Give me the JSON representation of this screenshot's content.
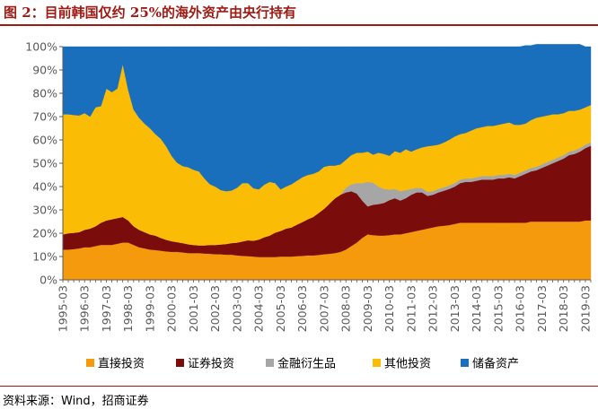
{
  "title": "图 2：目前韩国仅约 25%的海外资产由央行持有",
  "source": "资料来源：Wind，招商证券",
  "chart_data": {
    "type": "area",
    "stacked": true,
    "x": [
      "1995-03",
      "1995-06",
      "1995-09",
      "1995-12",
      "1996-03",
      "1996-06",
      "1996-09",
      "1996-12",
      "1997-03",
      "1997-06",
      "1997-09",
      "1997-12",
      "1998-03",
      "1998-06",
      "1998-09",
      "1998-12",
      "1999-03",
      "1999-06",
      "1999-09",
      "1999-12",
      "2000-03",
      "2000-06",
      "2000-09",
      "2000-12",
      "2001-03",
      "2001-06",
      "2001-09",
      "2001-12",
      "2002-03",
      "2002-06",
      "2002-09",
      "2002-12",
      "2003-03",
      "2003-06",
      "2003-09",
      "2003-12",
      "2004-03",
      "2004-06",
      "2004-09",
      "2004-12",
      "2005-03",
      "2005-06",
      "2005-09",
      "2005-12",
      "2006-03",
      "2006-06",
      "2006-09",
      "2006-12",
      "2007-03",
      "2007-06",
      "2007-09",
      "2007-12",
      "2008-03",
      "2008-06",
      "2008-09",
      "2008-12",
      "2009-03",
      "2009-06",
      "2009-09",
      "2009-12",
      "2010-03",
      "2010-06",
      "2010-09",
      "2010-12",
      "2011-03",
      "2011-06",
      "2011-09",
      "2011-12",
      "2012-03",
      "2012-06",
      "2012-09",
      "2012-12",
      "2013-03",
      "2013-06",
      "2013-09",
      "2013-12",
      "2014-03",
      "2014-06",
      "2014-09",
      "2014-12",
      "2015-03",
      "2015-06",
      "2015-09",
      "2015-12",
      "2016-03",
      "2016-06",
      "2016-09",
      "2016-12",
      "2017-03",
      "2017-06",
      "2017-09",
      "2017-12",
      "2018-03",
      "2018-06",
      "2018-09",
      "2018-12",
      "2019-03",
      "2019-06"
    ],
    "x_tick_labels": [
      "1995-03",
      "1996-03",
      "1997-03",
      "1998-03",
      "1999-03",
      "2000-03",
      "2001-03",
      "2002-03",
      "2003-03",
      "2004-03",
      "2005-03",
      "2006-03",
      "2007-03",
      "2008-03",
      "2009-03",
      "2010-03",
      "2011-03",
      "2012-03",
      "2013-03",
      "2014-03",
      "2015-03",
      "2016-03",
      "2017-03",
      "2018-03",
      "2019-03"
    ],
    "y_tick_labels": [
      "0%",
      "10%",
      "20%",
      "30%",
      "40%",
      "50%",
      "60%",
      "70%",
      "80%",
      "90%",
      "100%"
    ],
    "ylim": [
      0,
      100
    ],
    "unit": "%",
    "legend_position": "bottom",
    "grid": false,
    "series": [
      {
        "name": "直接投资",
        "color": "#f59a0d",
        "values": [
          13,
          13,
          13.2,
          13.5,
          14,
          14,
          14.5,
          15,
          15,
          15,
          15.5,
          16,
          16,
          15,
          14,
          13.5,
          13,
          12.8,
          12.5,
          12.2,
          12,
          12,
          11.8,
          11.5,
          11.5,
          11.5,
          11.3,
          11.2,
          11,
          11,
          10.8,
          10.8,
          10.5,
          10.3,
          10.2,
          10,
          9.8,
          9.8,
          9.8,
          9.8,
          10,
          10,
          10,
          10.2,
          10.3,
          10.5,
          10.5,
          10.7,
          11,
          11.2,
          11.5,
          12,
          13,
          14.5,
          16,
          18,
          19.5,
          19.2,
          19,
          19,
          19.2,
          19.5,
          19.5,
          20,
          20.5,
          21,
          21.5,
          22,
          22.5,
          23,
          23.2,
          23.5,
          24,
          24.5,
          24.5,
          24.5,
          24.5,
          24.5,
          24.5,
          24.5,
          24.5,
          24.5,
          24.5,
          24.5,
          24.5,
          24.5,
          25,
          25,
          25,
          25,
          25,
          25,
          25,
          25,
          25,
          25,
          25.5,
          25.5
        ]
      },
      {
        "name": "证券投资",
        "color": "#7b0c0c",
        "values": [
          6.5,
          7,
          7,
          7,
          7.5,
          8,
          8.5,
          9.5,
          10.5,
          11,
          11,
          11,
          9.5,
          8,
          7.5,
          7,
          6.5,
          6.2,
          5.5,
          5,
          4.6,
          4.2,
          4,
          3.8,
          3.5,
          3.3,
          3.5,
          3.8,
          4,
          4.2,
          4.6,
          5,
          5.5,
          6.2,
          6.8,
          6.8,
          7.5,
          8.5,
          9.2,
          10.5,
          11,
          12,
          12.5,
          13.5,
          14.5,
          15.5,
          16.5,
          18,
          19.5,
          21.5,
          23.5,
          24.5,
          24.5,
          23.5,
          21,
          16,
          12,
          13,
          13.5,
          14,
          15,
          15.5,
          14.5,
          15,
          16,
          16.5,
          16,
          14,
          14,
          14.5,
          15,
          15.5,
          16,
          17,
          17.5,
          17.5,
          18,
          18.5,
          18.5,
          18.5,
          19,
          19,
          19.5,
          19,
          20,
          21,
          21.5,
          22,
          23,
          24,
          25,
          26,
          27,
          28.5,
          29,
          30,
          31,
          32
        ]
      },
      {
        "name": "金融衍生品",
        "color": "#a6a6a6",
        "values": [
          0,
          0,
          0,
          0,
          0,
          0,
          0,
          0,
          0,
          0,
          0,
          0,
          0,
          0,
          0,
          0,
          0,
          0,
          0,
          0,
          0,
          0,
          0,
          0,
          0,
          0,
          0,
          0,
          0,
          0,
          0,
          0,
          0,
          0,
          0,
          0,
          0,
          0,
          0,
          0,
          0,
          0,
          0,
          0,
          0,
          0,
          0,
          0,
          0,
          0,
          0,
          0,
          2,
          3,
          4.5,
          7.5,
          10.5,
          9.5,
          7.5,
          6,
          4.5,
          4,
          4,
          3.5,
          2.5,
          2,
          1.8,
          1.8,
          1.6,
          1.5,
          1.5,
          1.5,
          1.5,
          1.5,
          1.5,
          1.5,
          1.5,
          1.5,
          1.5,
          1.5,
          1.5,
          1.5,
          1.5,
          1.5,
          1.5,
          1.5,
          1.5,
          1.5,
          1.5,
          1.5,
          1.5,
          1.5,
          1.5,
          1.5,
          1.5,
          1.5,
          1.5,
          1.5
        ]
      },
      {
        "name": "其他投资",
        "color": "#fbbc05",
        "values": [
          51.5,
          51,
          50.5,
          50,
          50,
          48,
          51,
          50,
          56.5,
          54.5,
          55.5,
          65.5,
          56,
          50,
          48,
          46.5,
          45.5,
          43.5,
          42.5,
          40,
          36.5,
          34,
          33,
          33,
          32.2,
          31.7,
          28.7,
          26,
          25,
          23.3,
          22.6,
          22.5,
          23.5,
          25,
          24.5,
          22.5,
          21.5,
          22.5,
          23,
          21.2,
          17.8,
          18,
          18.5,
          18.8,
          19.2,
          19,
          18.5,
          17.8,
          18,
          16.3,
          14,
          13,
          12,
          12.5,
          13,
          13,
          13,
          12,
          14.5,
          15,
          14.5,
          16.2,
          16.5,
          17.5,
          16,
          16.5,
          17.5,
          19.5,
          19.5,
          19,
          19.2,
          19.6,
          20,
          19.5,
          19.5,
          20.5,
          21,
          21,
          21.5,
          21.5,
          21.5,
          22,
          22,
          21.5,
          20.5,
          20,
          20.5,
          21,
          20.5,
          20,
          19.5,
          18.5,
          18,
          17.5,
          17,
          16.5,
          16,
          16
        ]
      },
      {
        "name": "储备资产",
        "color": "#1a6fbd",
        "values": [
          29,
          29,
          29.3,
          29.5,
          28.5,
          30,
          26,
          25.5,
          18,
          19.5,
          18,
          7.5,
          18.5,
          27,
          30.5,
          33,
          35,
          37.5,
          39.5,
          42.8,
          46.9,
          49.8,
          51.2,
          51.7,
          52.8,
          53.5,
          56.5,
          59,
          60,
          61.5,
          62,
          61.7,
          60.5,
          58.5,
          58.5,
          60.7,
          61.2,
          59.2,
          58,
          58.5,
          61.2,
          60,
          59,
          57.5,
          56,
          55,
          54.5,
          53.5,
          51.5,
          51,
          51,
          50.5,
          48.5,
          46.5,
          45.5,
          45.5,
          45,
          46.3,
          45.5,
          46,
          46.8,
          44.8,
          45.5,
          44,
          45,
          44,
          43.2,
          42.7,
          42.4,
          42,
          41.1,
          39.9,
          38.5,
          37.5,
          37,
          36,
          35,
          34.5,
          34,
          34,
          33.5,
          33,
          32.5,
          33.5,
          33.5,
          33.5,
          32,
          31.5,
          31,
          30.5,
          30,
          30,
          29.5,
          28.5,
          28.5,
          28,
          26,
          25
        ]
      }
    ]
  }
}
